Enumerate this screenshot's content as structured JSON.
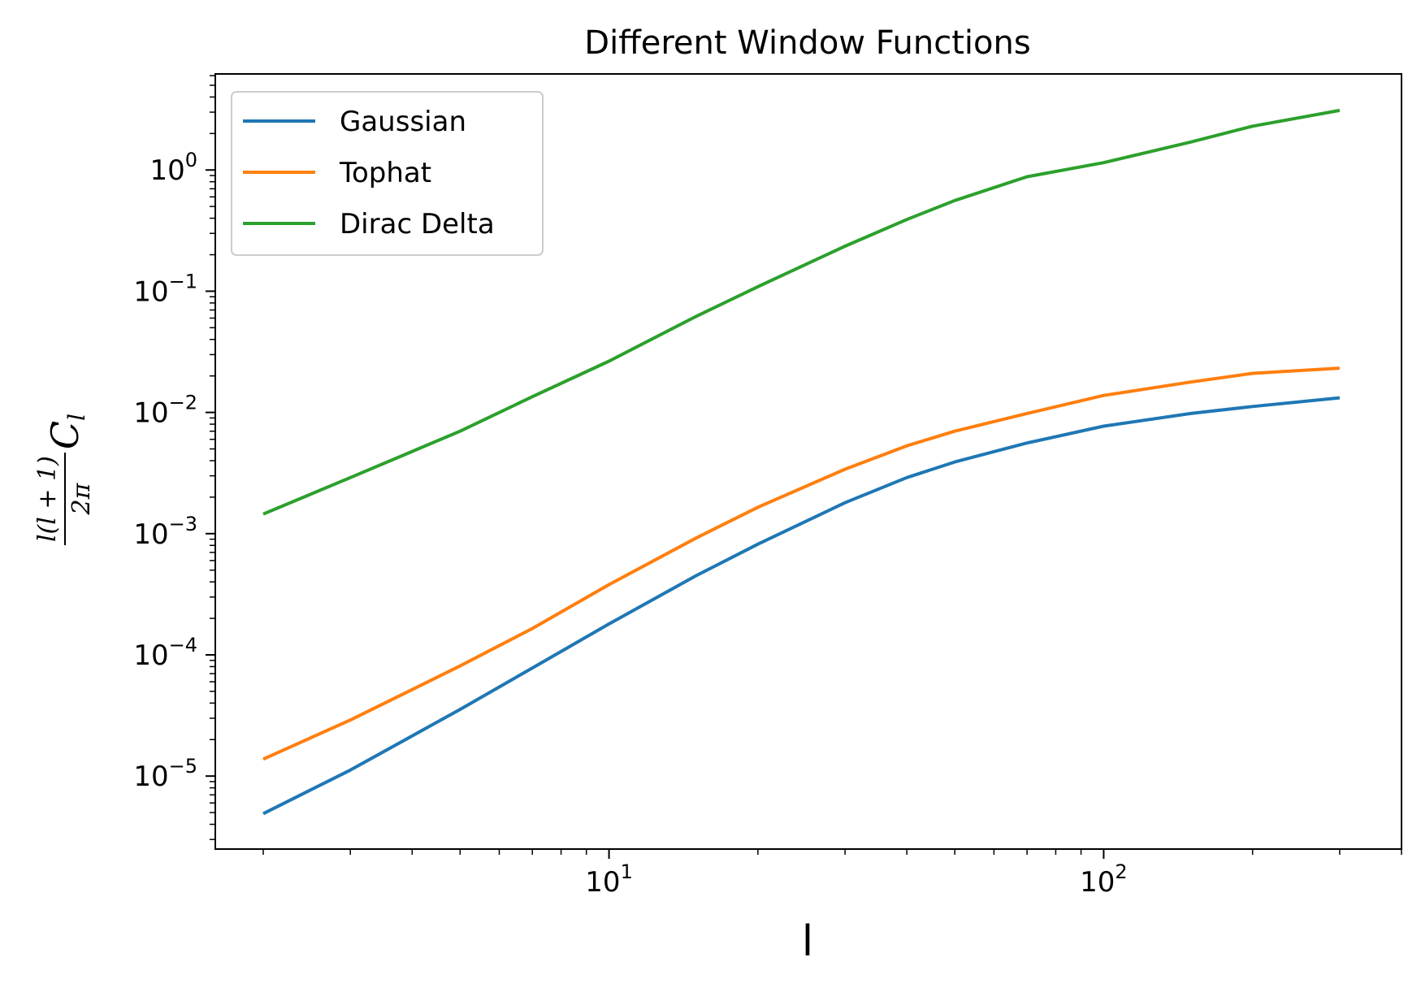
{
  "chart_data": {
    "type": "line",
    "title": "Different Window Functions",
    "xlabel": "l",
    "ylabel": {
      "numerator": "l(l + 1)",
      "denominator": "2π",
      "symbol": "C",
      "subscript": "l"
    },
    "xscale": "log",
    "yscale": "log",
    "xlim": [
      1.6,
      400
    ],
    "ylim": [
      2.5e-06,
      6.2
    ],
    "x_ticks": [
      {
        "value": 10,
        "base": "10",
        "exp": "1"
      },
      {
        "value": 100,
        "base": "10",
        "exp": "2"
      }
    ],
    "y_ticks": [
      {
        "value": 1e-05,
        "base": "10",
        "exp": "−5"
      },
      {
        "value": 0.0001,
        "base": "10",
        "exp": "−4"
      },
      {
        "value": 0.001,
        "base": "10",
        "exp": "−3"
      },
      {
        "value": 0.01,
        "base": "10",
        "exp": "−2"
      },
      {
        "value": 0.1,
        "base": "10",
        "exp": "−1"
      },
      {
        "value": 1,
        "base": "10",
        "exp": "0"
      }
    ],
    "grid": false,
    "legend_position": "top-left",
    "x": [
      2,
      3,
      5,
      7,
      10,
      15,
      20,
      30,
      40,
      50,
      70,
      100,
      150,
      200,
      300
    ],
    "series": [
      {
        "name": "Gaussian",
        "color": "#1f77b4",
        "values": [
          4.9e-06,
          1.12e-05,
          3.55e-05,
          7.8e-05,
          0.00018,
          0.00045,
          0.00082,
          0.0018,
          0.0029,
          0.0039,
          0.0056,
          0.0077,
          0.0098,
          0.0112,
          0.0132
        ]
      },
      {
        "name": "Tophat",
        "color": "#ff7f0e",
        "values": [
          1.38e-05,
          2.9e-05,
          8.1e-05,
          0.000165,
          0.00038,
          0.00092,
          0.00165,
          0.0034,
          0.0053,
          0.007,
          0.0098,
          0.0138,
          0.0178,
          0.021,
          0.0232
        ]
      },
      {
        "name": "Dirac Delta",
        "color": "#2ca02c",
        "values": [
          0.00145,
          0.0029,
          0.007,
          0.0135,
          0.0265,
          0.062,
          0.109,
          0.235,
          0.39,
          0.56,
          0.88,
          1.15,
          1.7,
          2.3,
          3.1
        ]
      }
    ]
  }
}
